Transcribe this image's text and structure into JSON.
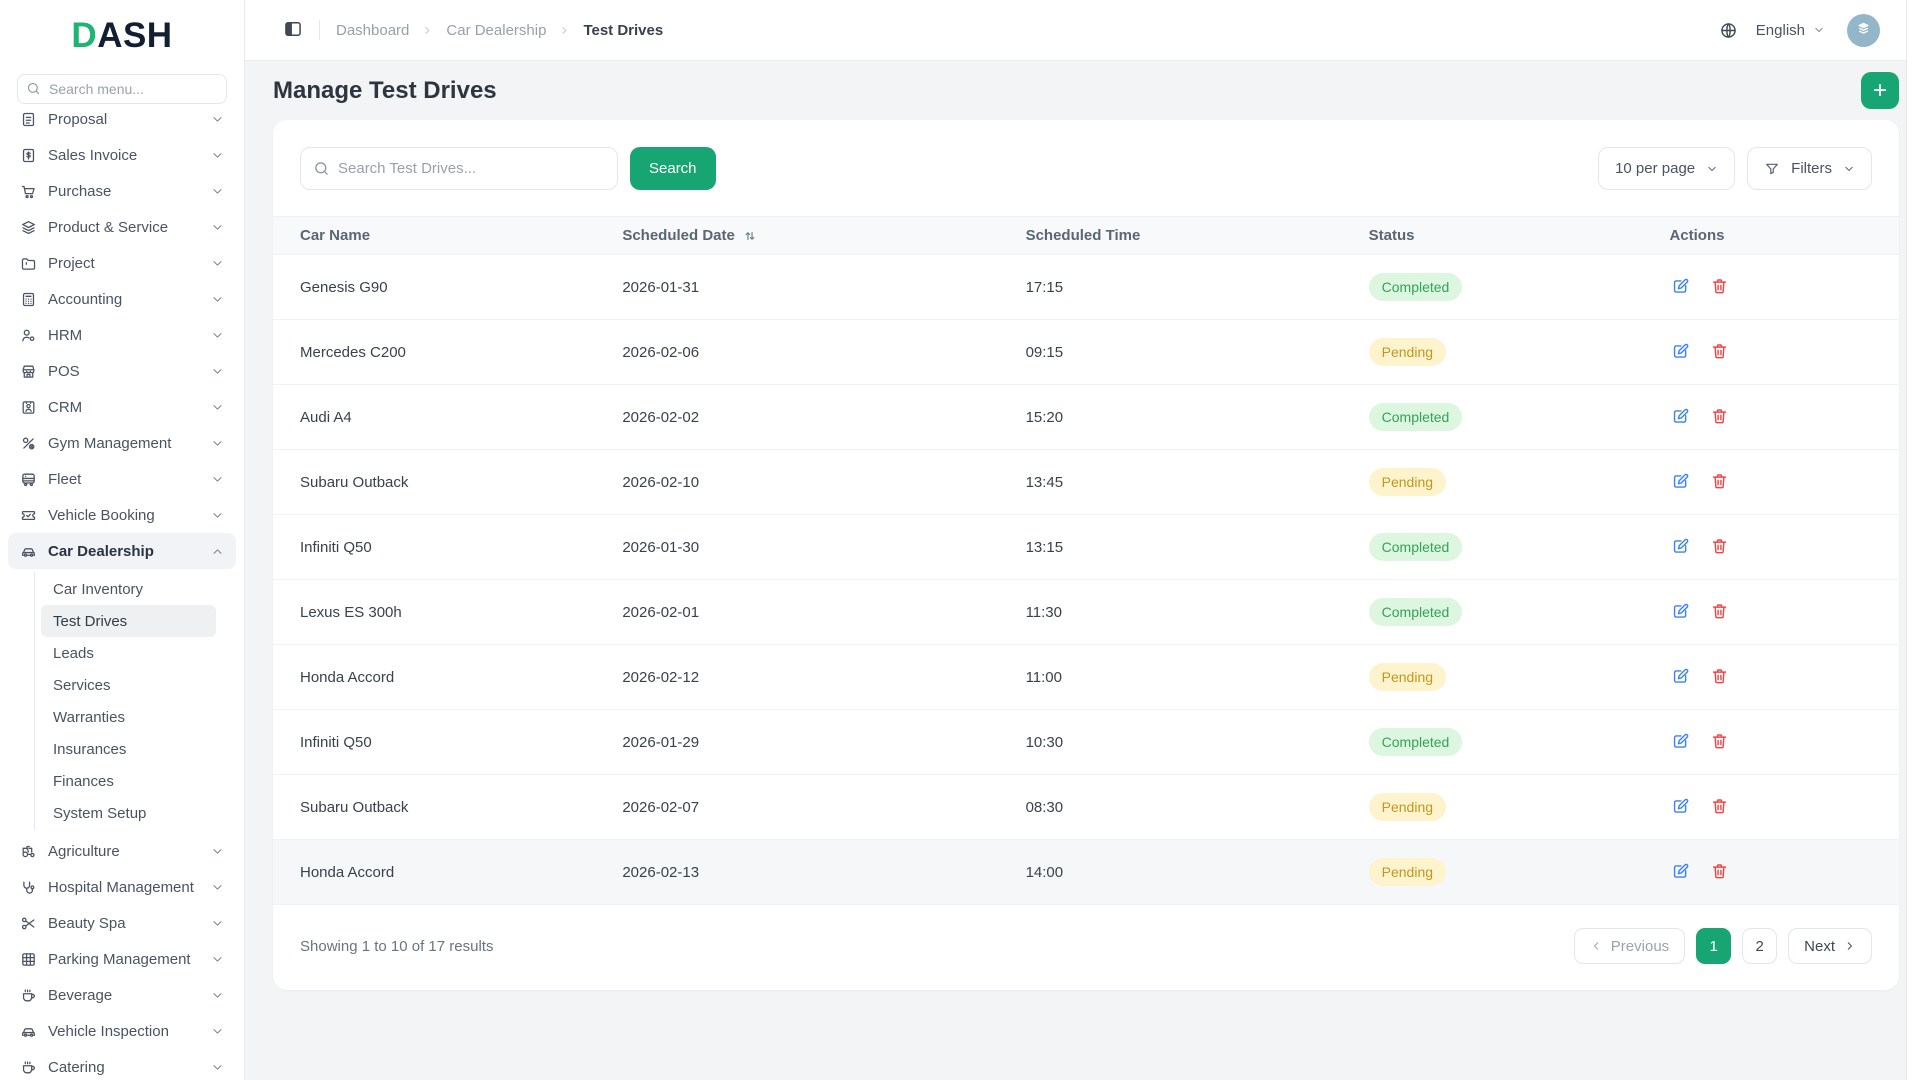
{
  "brand": {
    "logo_d": "D",
    "logo_rest": "ASH"
  },
  "sidebar": {
    "search": {
      "placeholder": "Search menu...",
      "icon": "search-icon"
    },
    "items": [
      {
        "label": "Proposal",
        "icon": "document-icon",
        "clipped": true
      },
      {
        "label": "Sales Invoice",
        "icon": "invoice-icon"
      },
      {
        "label": "Purchase",
        "icon": "cart-icon"
      },
      {
        "label": "Product & Service",
        "icon": "layers-icon"
      },
      {
        "label": "Project",
        "icon": "folder-icon"
      },
      {
        "label": "Accounting",
        "icon": "calculator-icon"
      },
      {
        "label": "HRM",
        "icon": "people-icon"
      },
      {
        "label": "POS",
        "icon": "store-icon"
      },
      {
        "label": "CRM",
        "icon": "contact-card-icon"
      },
      {
        "label": "Gym Management",
        "icon": "gym-icon"
      },
      {
        "label": "Fleet",
        "icon": "bus-icon"
      },
      {
        "label": "Vehicle Booking",
        "icon": "ticket-icon"
      },
      {
        "label": "Car Dealership",
        "icon": "car-icon",
        "active": true,
        "expanded": true,
        "children": [
          "Car Inventory",
          "Test Drives",
          "Leads",
          "Services",
          "Warranties",
          "Insurances",
          "Finances",
          "System Setup"
        ],
        "active_child": "Test Drives"
      },
      {
        "label": "Agriculture",
        "icon": "tractor-icon"
      },
      {
        "label": "Hospital Management",
        "icon": "stethoscope-icon"
      },
      {
        "label": "Beauty Spa",
        "icon": "scissors-icon"
      },
      {
        "label": "Parking Management",
        "icon": "grid-icon"
      },
      {
        "label": "Beverage",
        "icon": "cup-icon"
      },
      {
        "label": "Vehicle Inspection",
        "icon": "car-icon"
      },
      {
        "label": "Catering",
        "icon": "cup-icon"
      }
    ]
  },
  "topbar": {
    "breadcrumb": [
      "Dashboard",
      "Car Dealership",
      "Test Drives"
    ],
    "language": {
      "label": "English",
      "globe_icon": "globe-icon",
      "flag_icon": "uk-flag-icon"
    }
  },
  "page": {
    "title": "Manage Test Drives",
    "add_button": "+"
  },
  "toolbar": {
    "search_placeholder": "Search Test Drives...",
    "search_button": "Search",
    "per_page": "10 per page",
    "filters": "Filters"
  },
  "table": {
    "columns": [
      "Car Name",
      "Scheduled Date",
      "Scheduled Time",
      "Status",
      "Actions"
    ],
    "sort_column": "Scheduled Date",
    "rows": [
      {
        "car": "Genesis G90",
        "date": "2026-01-31",
        "time": "17:15",
        "status": "Completed"
      },
      {
        "car": "Mercedes C200",
        "date": "2026-02-06",
        "time": "09:15",
        "status": "Pending"
      },
      {
        "car": "Audi A4",
        "date": "2026-02-02",
        "time": "15:20",
        "status": "Completed"
      },
      {
        "car": "Subaru Outback",
        "date": "2026-02-10",
        "time": "13:45",
        "status": "Pending"
      },
      {
        "car": "Infiniti Q50",
        "date": "2026-01-30",
        "time": "13:15",
        "status": "Completed"
      },
      {
        "car": "Lexus ES 300h",
        "date": "2026-02-01",
        "time": "11:30",
        "status": "Completed"
      },
      {
        "car": "Honda Accord",
        "date": "2026-02-12",
        "time": "11:00",
        "status": "Pending"
      },
      {
        "car": "Infiniti Q50",
        "date": "2026-01-29",
        "time": "10:30",
        "status": "Completed"
      },
      {
        "car": "Subaru Outback",
        "date": "2026-02-07",
        "time": "08:30",
        "status": "Pending"
      },
      {
        "car": "Honda Accord",
        "date": "2026-02-13",
        "time": "14:00",
        "status": "Pending",
        "highlighted": true
      }
    ]
  },
  "pagination": {
    "summary": "Showing 1 to 10 of 17 results",
    "previous": "Previous",
    "next": "Next",
    "pages": [
      "1",
      "2"
    ],
    "current": "1"
  },
  "colors": {
    "accent": "#17a673",
    "logo_green": "#1db573",
    "logo_dark": "#121f33",
    "completed_bg": "#dcf6e0",
    "completed_text": "#35a258",
    "pending_bg": "#fdf3cd",
    "pending_text": "#c0981f",
    "edit": "#3b82f6",
    "delete": "#ef4444"
  }
}
